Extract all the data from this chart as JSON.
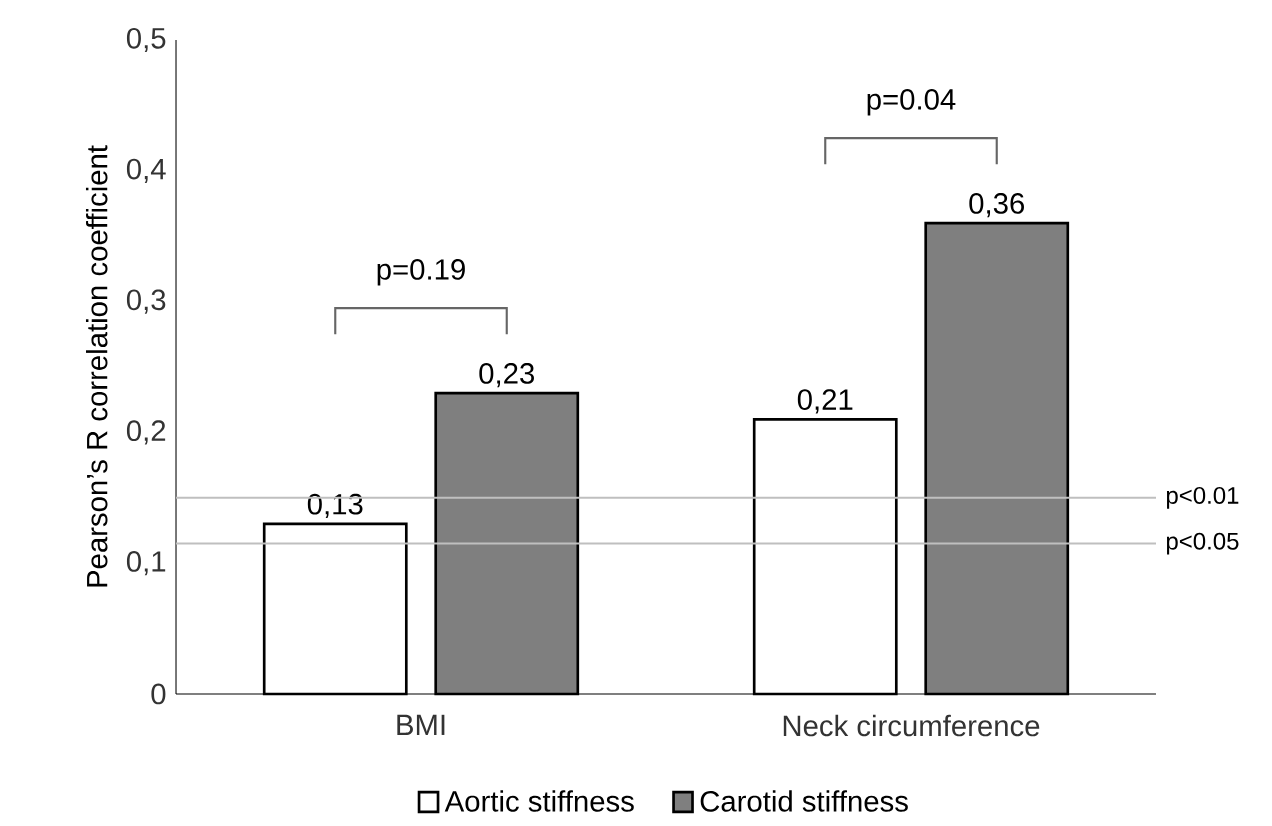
{
  "chart_data": {
    "type": "bar",
    "ylabel": "Pearson’s R correlation coefficient",
    "categories": [
      "BMI",
      "Neck circumference"
    ],
    "series": [
      {
        "name": "Aortic stiffness",
        "color": "#ffffff",
        "values": [
          0.13,
          0.21
        ],
        "value_labels": [
          "0,13",
          "0,21"
        ]
      },
      {
        "name": "Carotid stiffness",
        "color": "#7f7f7f",
        "values": [
          0.23,
          0.36
        ],
        "value_labels": [
          "0,23",
          "0,36"
        ]
      }
    ],
    "ylim": [
      0,
      0.5
    ],
    "yticks": [
      {
        "value": 0,
        "label": "0"
      },
      {
        "value": 0.1,
        "label": "0,1"
      },
      {
        "value": 0.2,
        "label": "0,2"
      },
      {
        "value": 0.3,
        "label": "0,3"
      },
      {
        "value": 0.4,
        "label": "0,4"
      },
      {
        "value": 0.5,
        "label": "0,5"
      }
    ],
    "ref_lines": [
      {
        "axis": "y",
        "value": 0.15,
        "label": "p<0.01",
        "color": "#bfbfbf"
      },
      {
        "axis": "y",
        "value": 0.115,
        "label": "p<0.05",
        "color": "#bfbfbf"
      }
    ],
    "annotations": [
      "p=0.19",
      "p=0.04"
    ],
    "legend": "bottom"
  }
}
